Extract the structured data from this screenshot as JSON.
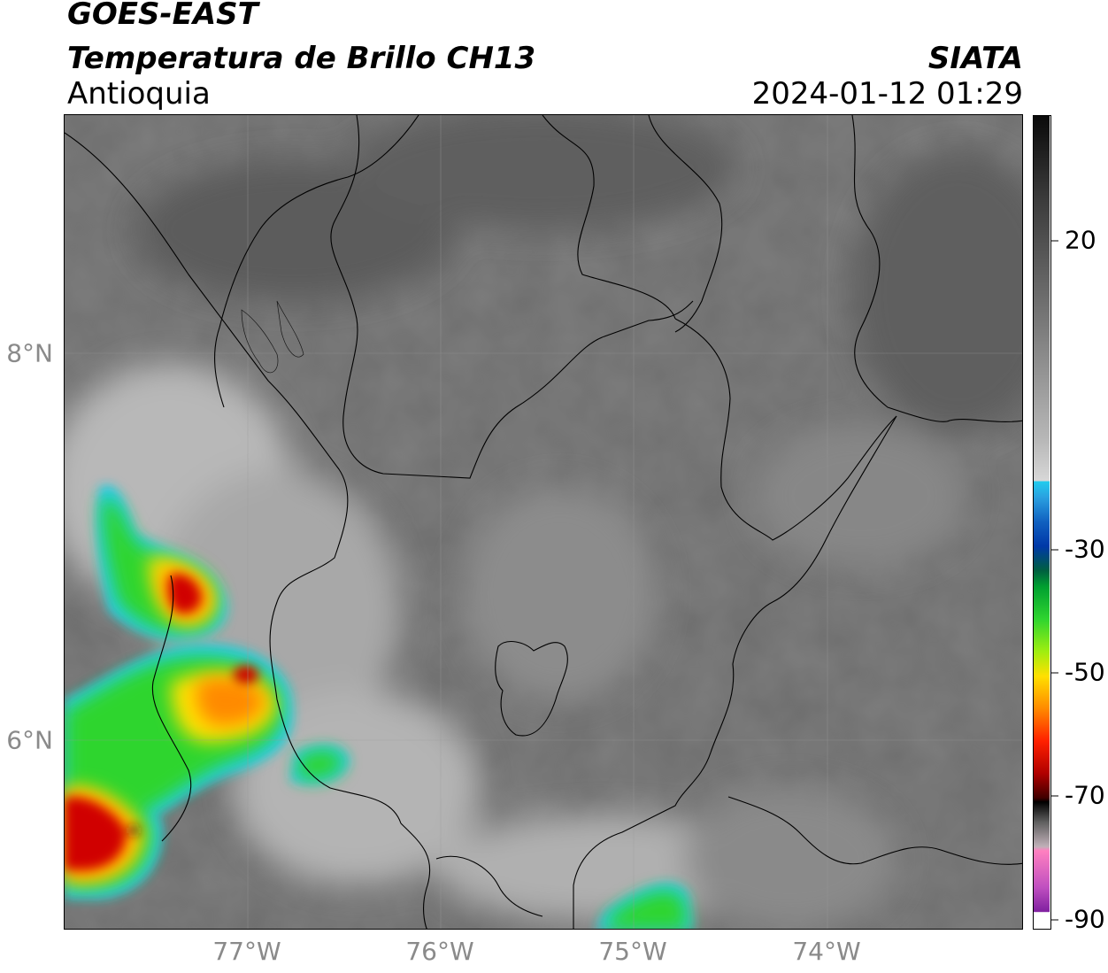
{
  "header": {
    "title_line1": "GOES-EAST",
    "title_line2": "Temperatura de Brillo CH13",
    "org": "SIATA",
    "region": "Antioquia",
    "timestamp": "2024-01-12 01:29"
  },
  "axes": {
    "lat_labels": [
      "8°N",
      "6°N"
    ],
    "lon_labels": [
      "77°W",
      "76°W",
      "75°W",
      "74°W"
    ]
  },
  "colorbar": {
    "ticks": [
      "20",
      "-30",
      "-50",
      "-70",
      "-90"
    ]
  },
  "colors": {
    "cold_red": "#d00000",
    "yellow": "#ffe000",
    "green": "#2fd52f",
    "blue": "#0038a8",
    "cyan": "#22ccee",
    "magenta": "#b040c0"
  }
}
